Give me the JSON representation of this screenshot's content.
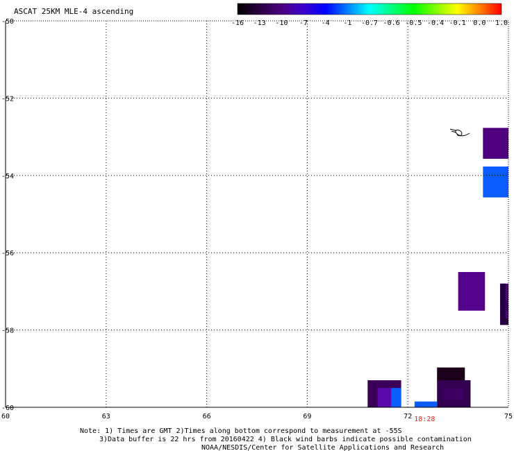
{
  "chart_data": {
    "type": "heatmap",
    "title": "ASCAT 25KM MLE-4 ascending",
    "xlim": [
      60,
      75
    ],
    "ylim": [
      -60,
      -50
    ],
    "x_ticks": [
      {
        "value": 60,
        "label": "60"
      },
      {
        "value": 63,
        "label": "63"
      },
      {
        "value": 66,
        "label": "66"
      },
      {
        "value": 69,
        "label": "69"
      },
      {
        "value": 72,
        "label": "72"
      },
      {
        "value": 75,
        "label": "75"
      }
    ],
    "y_ticks": [
      {
        "value": -50,
        "label": "-50"
      },
      {
        "value": -52,
        "label": "-52"
      },
      {
        "value": -54,
        "label": "-54"
      },
      {
        "value": -56,
        "label": "-56"
      },
      {
        "value": -58,
        "label": "-58"
      },
      {
        "value": -60,
        "label": "-60"
      }
    ],
    "grid": true,
    "time_labels": [
      {
        "x": 72.5,
        "label": "18:28",
        "color": "#e0231b"
      }
    ],
    "colorbar": {
      "labels": [
        "-16",
        "-13",
        "-10",
        "-7",
        "-4",
        "-1",
        "-0.7",
        "-0.6",
        "-0.5",
        "-0.4",
        "-0.1",
        "0.0",
        "1.0"
      ],
      "colors": [
        "#000000",
        "#2a0040",
        "#4d0080",
        "#3a00cc",
        "#0000ff",
        "#007fff",
        "#00ffff",
        "#00ff80",
        "#00ff00",
        "#80ff00",
        "#ffff00",
        "#ff8000",
        "#ff0000"
      ]
    },
    "cells": [
      {
        "x0": 74.24,
        "x1": 75.1,
        "y0": -53.57,
        "y1": -52.77,
        "color": "#4e007e"
      },
      {
        "x0": 74.24,
        "x1": 75.1,
        "y0": -54.57,
        "y1": -53.77,
        "color": "#0a5cff"
      },
      {
        "x0": 73.5,
        "x1": 74.3,
        "y0": -57.5,
        "y1": -56.5,
        "color": "#54038c"
      },
      {
        "x0": 74.78,
        "x1": 75.4,
        "y0": -57.7,
        "y1": -56.8,
        "color": "#4a0074"
      },
      {
        "x0": 74.75,
        "x1": 74.92,
        "y0": -57.87,
        "y1": -56.8,
        "color": "#240040"
      },
      {
        "x0": 74.9,
        "x1": 75.4,
        "y0": -57.52,
        "y1": -57.25,
        "color": "#3a0060"
      },
      {
        "x0": 74.9,
        "x1": 75.4,
        "y0": -57.87,
        "y1": -57.7,
        "color": "#2a0038"
      },
      {
        "x0": 70.8,
        "x1": 71.8,
        "y0": -60.0,
        "y1": -59.3,
        "color": "#3a0058"
      },
      {
        "x0": 71.1,
        "x1": 71.8,
        "y0": -60.0,
        "y1": -59.5,
        "color": "#5a0aaa"
      },
      {
        "x0": 71.5,
        "x1": 71.8,
        "y0": -60.0,
        "y1": -59.5,
        "color": "#0a5cff"
      },
      {
        "x0": 72.2,
        "x1": 72.87,
        "y0": -60.0,
        "y1": -59.85,
        "color": "#0a5cff"
      },
      {
        "x0": 72.87,
        "x1": 73.7,
        "y0": -59.3,
        "y1": -58.97,
        "color": "#1a0018"
      },
      {
        "x0": 72.87,
        "x1": 73.87,
        "y0": -60.0,
        "y1": -59.3,
        "color": "#330050"
      },
      {
        "x0": 73.06,
        "x1": 73.65,
        "y0": -59.8,
        "y1": -59.5,
        "color": "#3c0060"
      }
    ]
  },
  "notes": {
    "line1": "Note: 1) Times are GMT 2)Times along bottom correspond to measurement at -55S",
    "line2": "3)Data buffer is 22 hrs from 20160422 4) Black wind barbs indicate possible contamination",
    "line3": "NOAA/NESDIS/Center for Satellite Applications and Research"
  }
}
